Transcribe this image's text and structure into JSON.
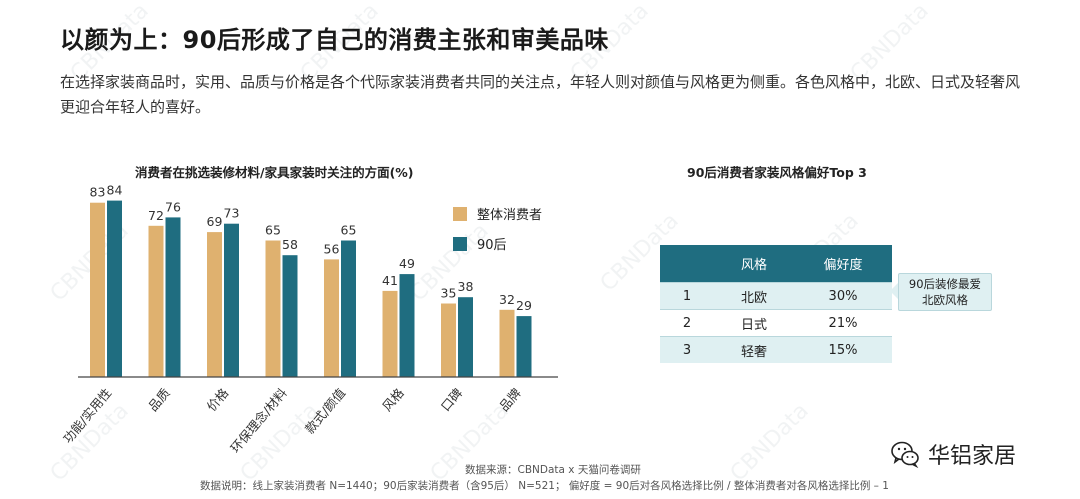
{
  "title": "以颜为上：90后形成了自己的消费主张和审美品味",
  "subtitle": "在选择家装商品时，实用、品质与价格是各个代际家装消费者共同的关注点，年轻人则对颜值与风格更为侧重。各色风格中，北欧、日式及轻奢风更迎合年轻人的喜好。",
  "watermark": "CBNData",
  "colors": {
    "overall": "#dfb16f",
    "post90": "#1f6d80",
    "table_header": "#1f6d80",
    "table_alt": "#dff0f2"
  },
  "chart_data": [
    {
      "type": "bar",
      "title": "消费者在挑选装修材料/家具家装时关注的方面(%)",
      "categories": [
        "功能/实用性",
        "品质",
        "价格",
        "环保理念/材料",
        "款式/颜值",
        "风格",
        "口碑",
        "品牌"
      ],
      "series": [
        {
          "name": "整体消费者",
          "values": [
            83,
            72,
            69,
            65,
            56,
            41,
            35,
            32
          ]
        },
        {
          "name": "90后",
          "values": [
            84,
            76,
            73,
            58,
            65,
            49,
            38,
            29
          ]
        }
      ],
      "ylim": [
        0,
        100
      ],
      "grid": false,
      "legend": "top-right"
    },
    {
      "type": "table",
      "title": "90后消费者家装风格偏好Top 3",
      "columns": [
        "",
        "风格",
        "偏好度"
      ],
      "rows": [
        [
          "1",
          "北欧",
          "30%"
        ],
        [
          "2",
          "日式",
          "21%"
        ],
        [
          "3",
          "轻奢",
          "15%"
        ]
      ]
    }
  ],
  "callout": {
    "line1": "90后装修最爱",
    "line2": "北欧风格"
  },
  "source": "数据来源：CBNData x 天猫问卷调研",
  "note": "数据说明：线上家装消费者 N=1440；90后家装消费者（含95后） N=521；  偏好度 = 90后对各风格选择比例 / 整体消费者对各风格选择比例 – 1",
  "brand": {
    "name": "华铝家居",
    "icon": "wechat-icon"
  }
}
